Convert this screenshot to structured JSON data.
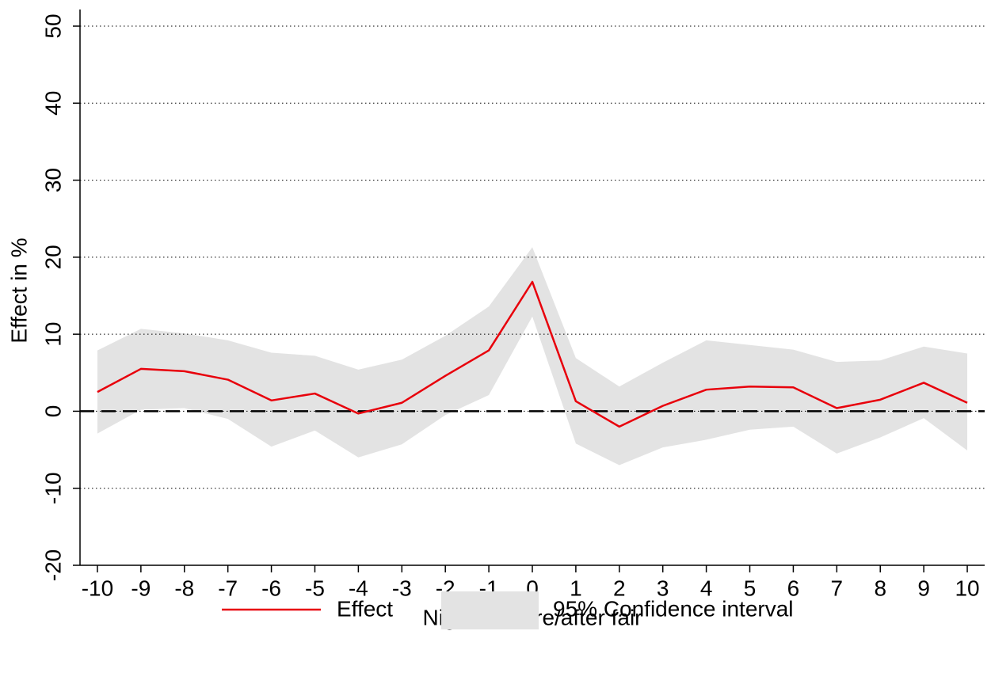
{
  "chart_data": {
    "type": "line",
    "x_label": "Nights before/after fair",
    "y_label": "Effect in %",
    "x": [
      -10,
      -9,
      -8,
      -7,
      -6,
      -5,
      -4,
      -3,
      -2,
      -1,
      0,
      1,
      2,
      3,
      4,
      5,
      6,
      7,
      8,
      9,
      10
    ],
    "series": [
      {
        "name": "Effect",
        "color": "#e8000b",
        "values": [
          2.5,
          5.5,
          5.2,
          4.1,
          1.4,
          2.3,
          -0.3,
          1.1,
          4.6,
          7.9,
          16.8,
          1.3,
          -2.0,
          0.7,
          2.8,
          3.2,
          3.1,
          0.4,
          1.5,
          3.7,
          1.1
        ]
      }
    ],
    "bands": [
      {
        "name": "95% Confidence interval",
        "color": "#e3e3e3",
        "lower": [
          -2.9,
          0.2,
          0.4,
          -1.0,
          -4.6,
          -2.5,
          -6.0,
          -4.3,
          -0.5,
          2.1,
          12.3,
          -4.2,
          -7.0,
          -4.7,
          -3.7,
          -2.4,
          -2.0,
          -5.5,
          -3.4,
          -0.9,
          -5.1
        ],
        "upper": [
          7.9,
          10.7,
          10.1,
          9.2,
          7.6,
          7.2,
          5.4,
          6.7,
          9.8,
          13.6,
          21.3,
          6.9,
          3.2,
          6.3,
          9.2,
          8.6,
          8.0,
          6.4,
          6.6,
          8.4,
          7.5
        ]
      }
    ],
    "reference_line": 0,
    "xlim": [
      -10.4,
      10.4
    ],
    "xticks": [
      -10,
      -9,
      -8,
      -7,
      -6,
      -5,
      -4,
      -3,
      -2,
      -1,
      0,
      1,
      2,
      3,
      4,
      5,
      6,
      7,
      8,
      9,
      10
    ],
    "ylim": [
      -20,
      50
    ],
    "yticks": [
      -20,
      -10,
      0,
      10,
      20,
      30,
      40,
      50
    ],
    "grid": true,
    "legend": "bottom"
  }
}
